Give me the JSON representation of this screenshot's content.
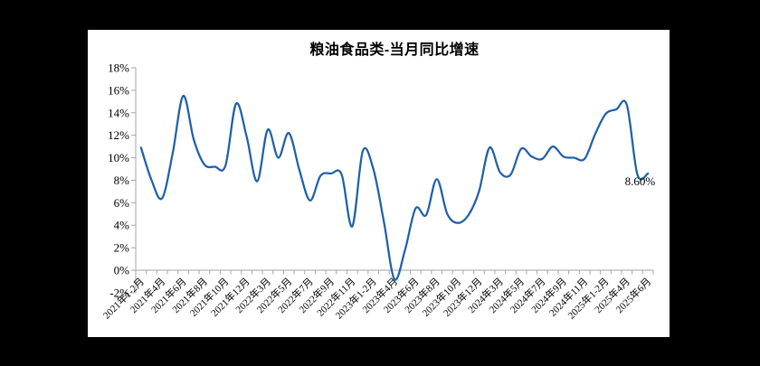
{
  "chart_data": {
    "type": "line",
    "title": "粮油食品类-当月同比增速",
    "smooth": true,
    "grid": false,
    "legend": false,
    "ylim": [
      -2,
      18
    ],
    "y_tick_step": 2,
    "y_tick_labels": [
      "18%",
      "16%",
      "14%",
      "12%",
      "10%",
      "8%",
      "6%",
      "4%",
      "2%",
      "0%",
      "-2%"
    ],
    "x_tick_label_interval": 2,
    "categories": [
      "2021年1-2月",
      "2021年3月",
      "2021年4月",
      "2021年5月",
      "2021年6月",
      "2021年7月",
      "2021年8月",
      "2021年9月",
      "2021年10月",
      "2021年11月",
      "2021年12月",
      "2022年1-2月",
      "2022年3月",
      "2022年4月",
      "2022年5月",
      "2022年6月",
      "2022年7月",
      "2022年8月",
      "2022年9月",
      "2022年10月",
      "2022年11月",
      "2022年12月",
      "2023年1-2月",
      "2023年3月",
      "2023年4月",
      "2023年5月",
      "2023年6月",
      "2023年7月",
      "2023年8月",
      "2023年9月",
      "2023年10月",
      "2023年11月",
      "2023年12月",
      "2024年1-2月",
      "2024年3月",
      "2024年4月",
      "2024年5月",
      "2024年6月",
      "2024年7月",
      "2024年8月",
      "2024年9月",
      "2024年10月",
      "2024年11月",
      "2024年12月",
      "2025年1-2月",
      "2025年3月",
      "2025年4月",
      "2025年5月",
      "2025年6月"
    ],
    "values": [
      10.9,
      8.0,
      6.4,
      10.4,
      15.5,
      11.6,
      9.4,
      9.2,
      9.3,
      14.8,
      11.9,
      7.9,
      12.5,
      10.0,
      12.2,
      8.9,
      6.2,
      8.4,
      8.6,
      8.5,
      3.9,
      10.6,
      9.0,
      4.3,
      -0.8,
      1.8,
      5.5,
      4.9,
      8.1,
      5.0,
      4.2,
      4.9,
      7.0,
      10.9,
      8.7,
      8.5,
      10.8,
      10.1,
      9.9,
      11.0,
      10.1,
      10.0,
      9.9,
      12.1,
      13.9,
      14.3,
      14.7,
      8.5,
      8.6
    ],
    "annotation": {
      "text": "8.60%",
      "point_index": 48
    },
    "colors": {
      "line": "#2060A8",
      "axis": "#A6A6A6",
      "text": "#000000",
      "card_background": "#FFFFFF",
      "page_background": "#000000"
    }
  }
}
